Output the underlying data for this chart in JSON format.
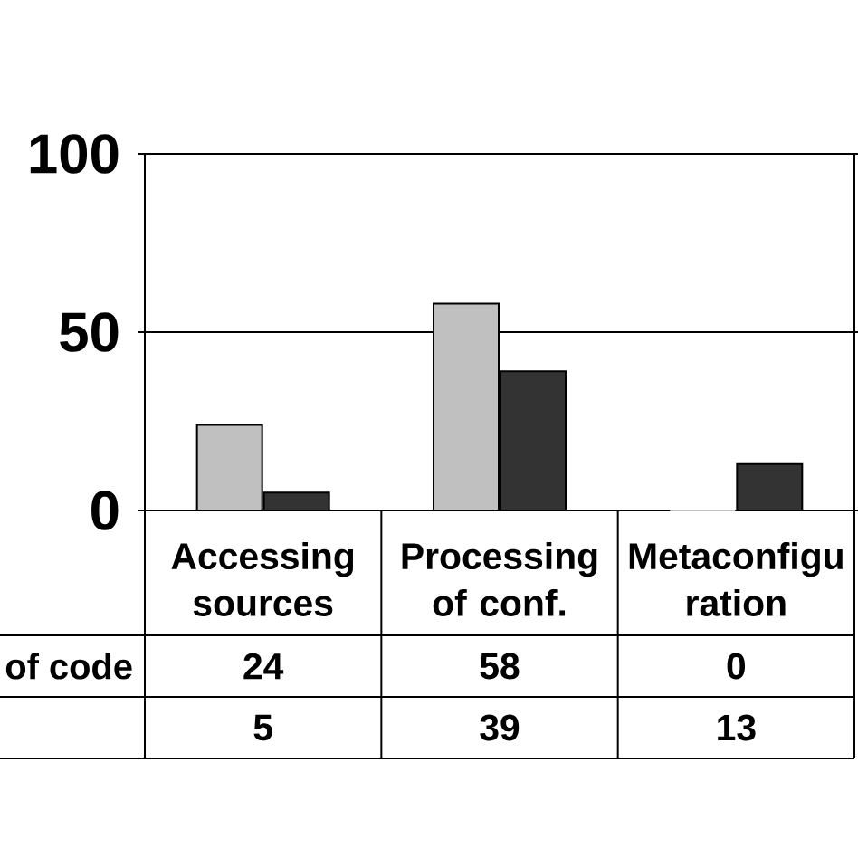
{
  "chart_data": {
    "type": "bar",
    "categories": [
      "Accessing sources",
      "Processing of conf.",
      "Metaconfigu ration"
    ],
    "series": [
      {
        "name": "of code",
        "color": "#c0c0c0",
        "values": [
          24,
          58,
          0
        ]
      },
      {
        "color": "#333333",
        "values": [
          5,
          39,
          13
        ]
      }
    ],
    "ylim": [
      0,
      100
    ],
    "yticks": [
      0,
      50,
      100
    ],
    "grid": "y",
    "data_labels": true
  }
}
